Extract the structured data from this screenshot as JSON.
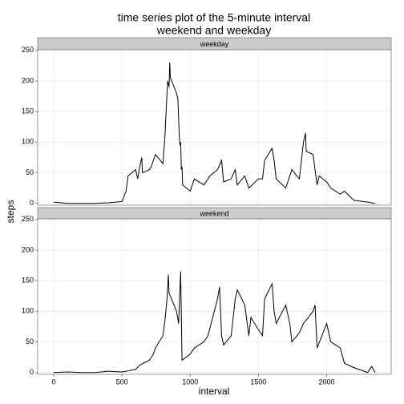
{
  "chart_data": {
    "type": "line",
    "title": [
      "time series plot of the 5-minute interval",
      "weekend and weekday"
    ],
    "xlabel": "interval",
    "ylabel": "steps",
    "color": "#000000",
    "grid": true,
    "xlim": [
      -117.75,
      2472.75
    ],
    "ylim": [
      -3,
      251
    ],
    "xticks": [
      0,
      500,
      1000,
      1500,
      2000
    ],
    "yticks": [
      0,
      50,
      100,
      150,
      200,
      250
    ],
    "facets": [
      {
        "name": "weekday",
        "x": [
          0,
          100,
          200,
          300,
          400,
          500,
          530,
          545,
          600,
          615,
          630,
          645,
          650,
          700,
          715,
          730,
          745,
          800,
          815,
          830,
          835,
          845,
          850,
          855,
          900,
          910,
          920,
          925,
          930,
          935,
          940,
          945,
          1000,
          1030,
          1100,
          1145,
          1200,
          1230,
          1245,
          1300,
          1330,
          1345,
          1400,
          1430,
          1500,
          1530,
          1545,
          1600,
          1615,
          1630,
          1700,
          1730,
          1745,
          1800,
          1815,
          1830,
          1845,
          1850,
          1900,
          1930,
          1945,
          2000,
          2030,
          2100,
          2130,
          2200,
          2300,
          2355
        ],
        "values": [
          2,
          0,
          0,
          0,
          1,
          3,
          20,
          45,
          55,
          40,
          60,
          75,
          50,
          55,
          60,
          70,
          80,
          65,
          110,
          180,
          200,
          190,
          230,
          205,
          180,
          170,
          110,
          95,
          100,
          55,
          60,
          30,
          20,
          40,
          30,
          45,
          55,
          70,
          35,
          40,
          55,
          30,
          45,
          25,
          40,
          40,
          70,
          90,
          70,
          40,
          25,
          45,
          55,
          40,
          70,
          100,
          115,
          85,
          80,
          30,
          45,
          35,
          25,
          15,
          20,
          5,
          2,
          0
        ]
      },
      {
        "name": "weekend",
        "x": [
          0,
          100,
          200,
          300,
          400,
          500,
          530,
          600,
          630,
          700,
          715,
          730,
          745,
          800,
          815,
          830,
          840,
          845,
          900,
          915,
          930,
          940,
          1000,
          1030,
          1100,
          1130,
          1200,
          1215,
          1230,
          1245,
          1300,
          1330,
          1345,
          1400,
          1430,
          1445,
          1500,
          1530,
          1545,
          1600,
          1615,
          1630,
          1700,
          1730,
          1745,
          1800,
          1830,
          1900,
          1915,
          1930,
          2000,
          2030,
          2100,
          2130,
          2200,
          2300,
          2330,
          2355
        ],
        "values": [
          0,
          1,
          0,
          0,
          2,
          1,
          2,
          5,
          12,
          20,
          25,
          30,
          40,
          60,
          85,
          120,
          160,
          130,
          100,
          80,
          165,
          20,
          30,
          40,
          50,
          60,
          120,
          140,
          60,
          45,
          60,
          120,
          135,
          110,
          60,
          90,
          70,
          60,
          120,
          145,
          100,
          80,
          110,
          80,
          50,
          65,
          80,
          100,
          110,
          40,
          80,
          50,
          40,
          15,
          8,
          0,
          10,
          0
        ]
      }
    ]
  }
}
